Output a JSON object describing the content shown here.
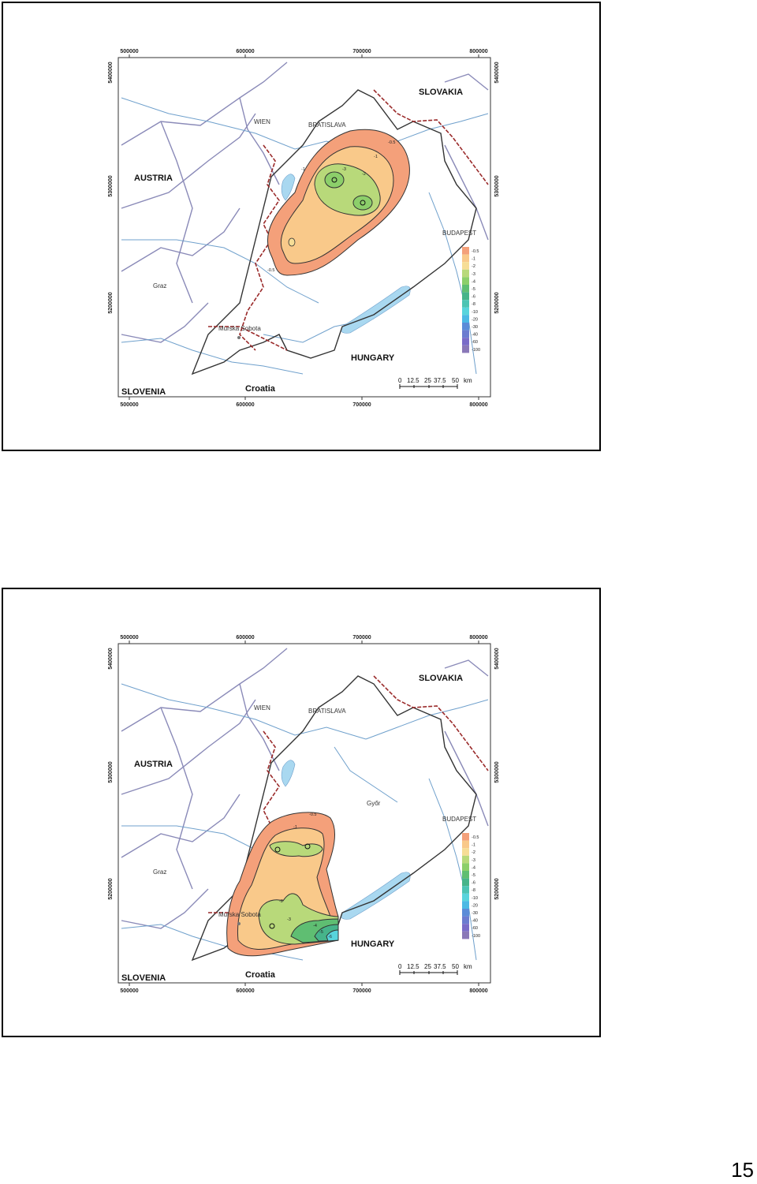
{
  "page_number": "15",
  "colors": {
    "border": "#333333",
    "river": "#6fa0cc",
    "lake": "#a9d8f0",
    "road": "#8a8ab8",
    "admin": "#9a2a2a",
    "c_05": "#f4a07a",
    "c_1": "#f9c98a",
    "c_2": "#f6dd96",
    "c_3": "#b8d97a",
    "c_4": "#8ccf6a",
    "c_5": "#5fbe72",
    "c_6": "#46b48a",
    "c_8": "#4cc4b4",
    "c_10": "#58d4dc",
    "c_20": "#4cb9e4",
    "c_30": "#5b8cd8",
    "c_40": "#6c7cd0",
    "c_60": "#7a6cc8",
    "c_100": "#8a78b8"
  },
  "maps": [
    {
      "axis_top": [
        "500000",
        "600000",
        "700000",
        "800000"
      ],
      "axis_bottom": [
        "500000",
        "600000",
        "700000",
        "800000"
      ],
      "axis_left": [
        "5400000",
        "5300000",
        "5200000"
      ],
      "axis_right": [
        "5400000",
        "5300000",
        "5200000"
      ],
      "countries": {
        "slovakia": "SLOVAKIA",
        "austria": "AUSTRIA",
        "hungary": "HUNGARY",
        "slovenia": "SLOVENIA",
        "croatia": "Croatia"
      },
      "cities": {
        "wien": "WIEN",
        "bratislava": "BRATISLAVA",
        "budapest": "BUDAPEST",
        "graz": "Graz",
        "murska": "Murska Sobota",
        "gyor": ""
      },
      "contour_labels": [
        "-0.5",
        "-1",
        "-2",
        "-3",
        "-0.5",
        "-1"
      ],
      "legend": [
        "-0.5",
        "-1",
        "-2",
        "-3",
        "-4",
        "-5",
        "-6",
        "-8",
        "-10",
        "-20",
        "-30",
        "-40",
        "-60",
        "-100"
      ],
      "scale": {
        "labels": [
          "0",
          "12.5",
          "25",
          "37.5",
          "50"
        ],
        "unit": "km"
      }
    },
    {
      "axis_top": [
        "500000",
        "600000",
        "700000",
        "800000"
      ],
      "axis_bottom": [
        "500000",
        "600000",
        "700000",
        "800000"
      ],
      "axis_left": [
        "5400000",
        "5300000",
        "5200000"
      ],
      "axis_right": [
        "5400000",
        "5300000",
        "5200000"
      ],
      "countries": {
        "slovakia": "SLOVAKIA",
        "austria": "AUSTRIA",
        "hungary": "HUNGARY",
        "slovenia": "SLOVENIA",
        "croatia": "Croatia"
      },
      "cities": {
        "wien": "WIEN",
        "bratislava": "BRATISLAVA",
        "budapest": "BUDAPEST",
        "graz": "Graz",
        "murska": "Murska Sobota",
        "gyor": "Győr"
      },
      "contour_labels": [
        "-0.5",
        "-1",
        "-2",
        "-3",
        "-4",
        "-5",
        "-6"
      ],
      "legend": [
        "-0.5",
        "-1",
        "-2",
        "-3",
        "-4",
        "-5",
        "-6",
        "-8",
        "-10",
        "-20",
        "-30",
        "-40",
        "-60",
        "-100"
      ],
      "scale": {
        "labels": [
          "0",
          "12.5",
          "25",
          "37.5",
          "50"
        ],
        "unit": "km"
      }
    }
  ]
}
